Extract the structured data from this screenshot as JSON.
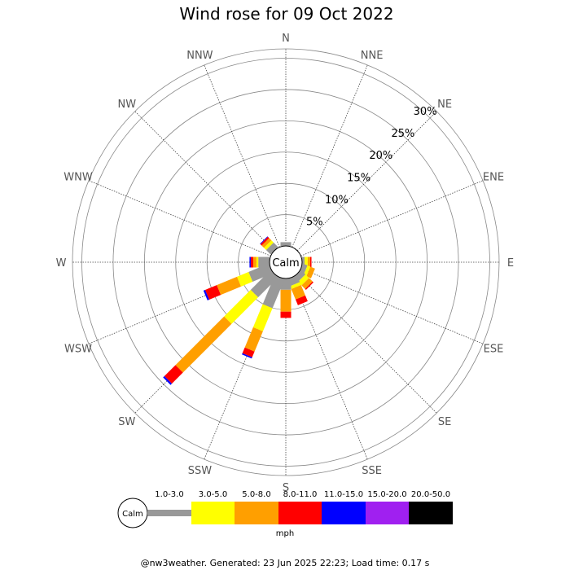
{
  "chart_data": {
    "type": "windrose",
    "title": "Wind rose for 09 Oct 2022",
    "directions": [
      "N",
      "NNE",
      "NE",
      "ENE",
      "E",
      "ESE",
      "SE",
      "SSE",
      "S",
      "SSW",
      "SW",
      "WSW",
      "W",
      "WNW",
      "NW",
      "NNW"
    ],
    "rings": [
      5,
      10,
      15,
      20,
      25,
      30
    ],
    "ring_labels": [
      "5%",
      "10%",
      "15%",
      "20%",
      "25%",
      "30%"
    ],
    "rmax": 31.5,
    "calm_label": "Calm",
    "unit": "mph",
    "series": [
      {
        "name": "1.0-3.0",
        "color": "#999999",
        "values": [
          0.6,
          0,
          0,
          0,
          0.4,
          0.8,
          1.0,
          1.2,
          1.8,
          5.0,
          4.5,
          3.5,
          1.8,
          0,
          1.0,
          0
        ]
      },
      {
        "name": "3.0-5.0",
        "color": "#ffff00",
        "values": [
          0,
          0,
          0,
          0,
          0.5,
          0.5,
          0.8,
          0.5,
          0,
          4.0,
          6.0,
          2.0,
          0.3,
          0,
          0.5,
          0
        ]
      },
      {
        "name": "5.0-8.0",
        "color": "#ff9f00",
        "values": [
          0,
          0,
          0,
          0,
          0.4,
          0.8,
          0.8,
          1.8,
          3.5,
          3.5,
          11.0,
          3.5,
          0.5,
          0,
          0.5,
          0
        ]
      },
      {
        "name": "8.0-11.0",
        "color": "#ff0000",
        "values": [
          0,
          0,
          0,
          0,
          0.2,
          0,
          0.2,
          1.0,
          1.0,
          1.0,
          2.5,
          2.0,
          0.4,
          0,
          0.3,
          0
        ]
      },
      {
        "name": "11.0-15.0",
        "color": "#0000ff",
        "values": [
          0,
          0,
          0,
          0,
          0,
          0,
          0,
          0,
          0,
          0.2,
          0.3,
          0.3,
          0.2,
          0,
          0.1,
          0
        ]
      },
      {
        "name": "15.0-20.0",
        "color": "#a020f0",
        "values": [
          0,
          0,
          0,
          0,
          0,
          0,
          0,
          0,
          0,
          0,
          0,
          0,
          0,
          0,
          0,
          0
        ]
      },
      {
        "name": "20.0-50.0",
        "color": "#000000",
        "values": [
          0,
          0,
          0,
          0,
          0,
          0,
          0,
          0,
          0,
          0,
          0,
          0,
          0,
          0,
          0,
          0
        ]
      }
    ]
  },
  "legend": {
    "calm_label": "Calm",
    "unit": "mph"
  },
  "footer": "@nw3weather. Generated: 23 Jun 2025 22:23; Load time: 0.17 s"
}
